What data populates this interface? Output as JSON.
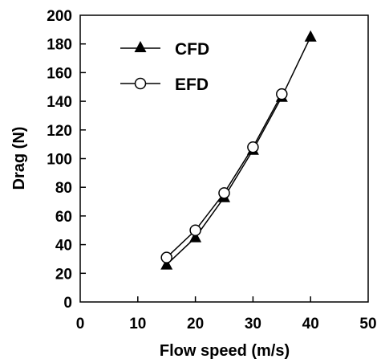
{
  "chart_data": {
    "type": "line",
    "xlabel": "Flow speed (m/s)",
    "ylabel": "Drag (N)",
    "xlim": [
      0,
      50
    ],
    "ylim": [
      0,
      200
    ],
    "xticks": [
      0,
      10,
      20,
      30,
      40,
      50
    ],
    "yticks": [
      0,
      20,
      40,
      60,
      80,
      100,
      120,
      140,
      160,
      180,
      200
    ],
    "grid": false,
    "legend_position": "top-left",
    "series": [
      {
        "name": "CFD",
        "marker": "filled-triangle",
        "color": "#000000",
        "x": [
          15,
          20,
          25,
          30,
          35,
          40
        ],
        "y": [
          26,
          45,
          73,
          106,
          143,
          185
        ]
      },
      {
        "name": "EFD",
        "marker": "open-circle",
        "color": "#000000",
        "x": [
          15,
          20,
          25,
          30,
          35
        ],
        "y": [
          31,
          50,
          76,
          108,
          145
        ]
      }
    ]
  }
}
